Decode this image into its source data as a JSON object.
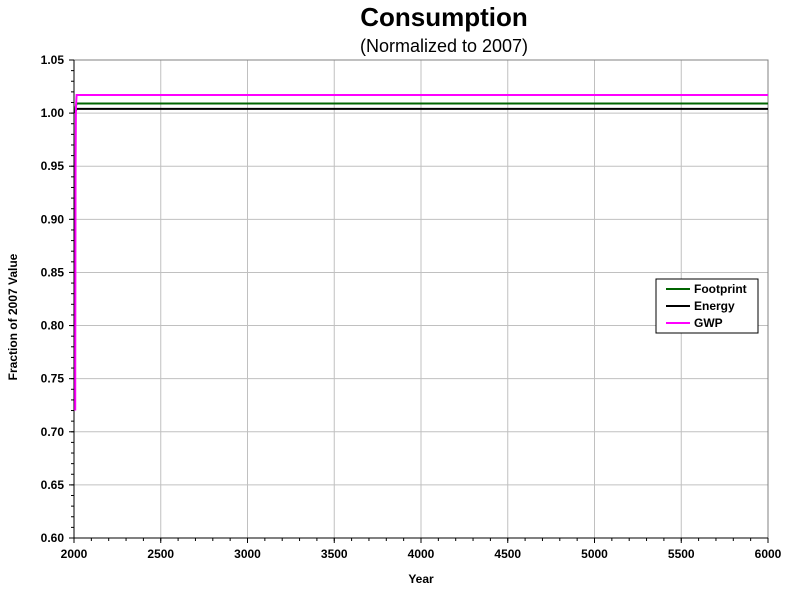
{
  "chart_data": {
    "type": "line",
    "title": "Consumption",
    "subtitle": "(Normalized to 2007)",
    "xlabel": "Year",
    "ylabel": "Fraction of 2007 Value",
    "xlim": [
      2000,
      6000
    ],
    "ylim": [
      0.6,
      1.05
    ],
    "x_ticks": [
      2000,
      2500,
      3000,
      3500,
      4000,
      4500,
      5000,
      5500,
      6000
    ],
    "y_ticks": [
      "0.60",
      "0.65",
      "0.70",
      "0.75",
      "0.80",
      "0.85",
      "0.90",
      "0.95",
      "1.00",
      "1.05"
    ],
    "grid": true,
    "legend_position": "right",
    "series": [
      {
        "name": "Footprint",
        "color": "#006400",
        "x": [
          2007,
          2010,
          2015,
          2030,
          6000
        ],
        "y": [
          1.0,
          1.006,
          1.009,
          1.009,
          1.009
        ]
      },
      {
        "name": "Energy",
        "color": "#000000",
        "x": [
          2007,
          2010,
          2015,
          2030,
          6000
        ],
        "y": [
          1.0,
          1.002,
          1.004,
          1.004,
          1.004
        ]
      },
      {
        "name": "GWP",
        "color": "#ff00ff",
        "x": [
          2007,
          2008,
          2009,
          2011,
          2015,
          2030,
          6000
        ],
        "y": [
          0.72,
          0.85,
          0.95,
          1.005,
          1.017,
          1.017,
          1.017
        ]
      }
    ]
  }
}
